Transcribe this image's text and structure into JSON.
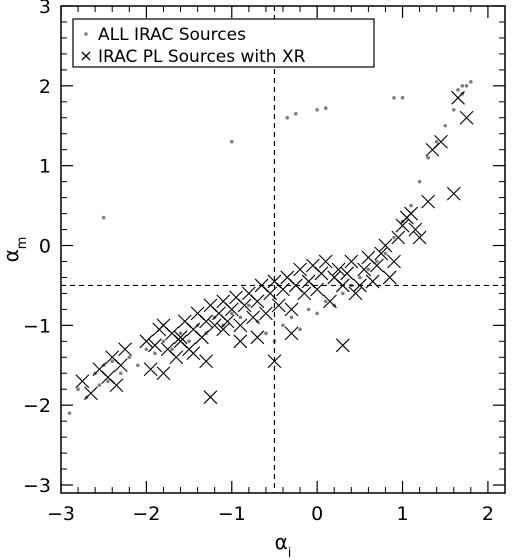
{
  "chart_data": {
    "type": "scatter",
    "xlabel": "α_i",
    "ylabel": "α_m",
    "xlim": [
      -3,
      2.2
    ],
    "ylim": [
      -3.1,
      3
    ],
    "xticks": [
      -3,
      -2,
      -1,
      0,
      1,
      2
    ],
    "yticks": [
      -3,
      -2,
      -1,
      0,
      1,
      2,
      3
    ],
    "grid": false,
    "legend_position": "top-left",
    "reference_lines": {
      "x": -0.5,
      "y": -0.5,
      "style": "dashed"
    },
    "series": [
      {
        "name": "ALL IRAC Sources",
        "marker": "dot",
        "color": "#7f7f7f",
        "x": [
          -2.9,
          -2.8,
          -2.7,
          -2.6,
          -2.55,
          -2.5,
          -2.45,
          -2.4,
          -2.3,
          -2.2,
          -2.1,
          -2.0,
          -1.9,
          -1.8,
          -1.7,
          -1.6,
          -1.5,
          -1.4,
          -1.3,
          -1.2,
          -1.1,
          -1.0,
          -0.9,
          -0.8,
          -0.7,
          -0.6,
          -0.5,
          -0.4,
          -0.3,
          -0.2,
          -0.1,
          0.0,
          0.1,
          0.2,
          0.3,
          0.4,
          0.5,
          0.6,
          0.7,
          0.8,
          0.9,
          1.0,
          1.1,
          1.2,
          1.3,
          1.4,
          1.5,
          1.6,
          1.7,
          1.75,
          1.8,
          -2.5,
          -1.0,
          0.9,
          1.0,
          -0.35,
          -0.25,
          0.0,
          0.1,
          1.65,
          1.7
        ],
        "y": [
          -2.1,
          -1.8,
          -1.9,
          -1.6,
          -1.75,
          -1.5,
          -1.7,
          -1.45,
          -1.6,
          -1.4,
          -1.5,
          -1.3,
          -1.35,
          -1.2,
          -1.3,
          -1.1,
          -1.2,
          -1.0,
          -1.1,
          -0.9,
          -1.0,
          -0.85,
          -0.9,
          -0.75,
          -0.95,
          -1.1,
          -1.2,
          -1.0,
          -0.9,
          -1.05,
          -0.8,
          -0.85,
          -0.7,
          -0.75,
          -0.6,
          -0.5,
          -0.4,
          -0.3,
          -0.2,
          -0.1,
          0.1,
          0.3,
          0.5,
          0.8,
          1.1,
          1.3,
          1.5,
          1.7,
          1.9,
          2.0,
          2.05,
          0.35,
          1.3,
          1.85,
          1.85,
          1.6,
          1.65,
          1.7,
          1.72,
          1.95,
          2.0
        ]
      },
      {
        "name": "IRAC PL Sources with XR",
        "marker": "x",
        "color": "#000000",
        "x": [
          -2.75,
          -2.65,
          -2.55,
          -2.45,
          -2.4,
          -2.35,
          -2.3,
          -2.25,
          -2.0,
          -1.95,
          -1.9,
          -1.85,
          -1.8,
          -1.75,
          -1.7,
          -1.65,
          -1.6,
          -1.55,
          -1.5,
          -1.45,
          -1.4,
          -1.35,
          -1.3,
          -1.25,
          -1.2,
          -1.15,
          -1.1,
          -1.05,
          -1.0,
          -0.95,
          -0.9,
          -0.85,
          -0.8,
          -0.75,
          -0.7,
          -0.65,
          -0.6,
          -0.55,
          -0.5,
          -0.45,
          -0.4,
          -0.35,
          -0.3,
          -0.25,
          -0.2,
          -0.15,
          -0.1,
          -0.05,
          0.0,
          0.05,
          0.1,
          0.15,
          0.2,
          0.25,
          0.3,
          0.35,
          0.4,
          0.45,
          0.5,
          0.55,
          0.6,
          0.65,
          0.7,
          0.75,
          0.8,
          0.85,
          0.9,
          0.95,
          1.0,
          1.05,
          1.1,
          1.15,
          1.2,
          1.3,
          1.35,
          1.45,
          1.6,
          1.65,
          1.75,
          -1.25,
          -0.5,
          -0.3,
          0.3,
          -1.8,
          -1.6,
          -1.45,
          -1.3,
          -0.9,
          -0.7,
          -1.1
        ],
        "y": [
          -1.7,
          -1.85,
          -1.55,
          -1.65,
          -1.4,
          -1.75,
          -1.5,
          -1.3,
          -1.2,
          -1.55,
          -1.25,
          -1.05,
          -1.6,
          -1.3,
          -1.1,
          -1.4,
          -1.2,
          -0.95,
          -1.3,
          -1.05,
          -0.85,
          -1.15,
          -0.95,
          -0.75,
          -1.0,
          -0.85,
          -0.7,
          -0.95,
          -0.8,
          -0.65,
          -1.0,
          -0.75,
          -0.6,
          -0.9,
          -0.7,
          -0.5,
          -0.85,
          -0.6,
          -0.45,
          -0.75,
          -0.55,
          -0.4,
          -0.8,
          -0.5,
          -0.3,
          -0.6,
          -0.45,
          -0.25,
          -0.55,
          -0.35,
          -0.2,
          -0.7,
          -0.4,
          -0.3,
          -0.5,
          -0.35,
          -0.2,
          -0.6,
          -0.5,
          -0.3,
          -0.15,
          -0.45,
          -0.25,
          -0.1,
          0.0,
          -0.4,
          -0.2,
          0.1,
          0.25,
          0.35,
          0.4,
          0.2,
          0.1,
          0.55,
          1.2,
          1.3,
          0.65,
          1.85,
          1.6,
          -1.9,
          -1.45,
          -1.1,
          -1.25,
          -1.0,
          -1.15,
          -1.35,
          -1.45,
          -1.2,
          -1.15,
          -1.05
        ]
      }
    ]
  }
}
